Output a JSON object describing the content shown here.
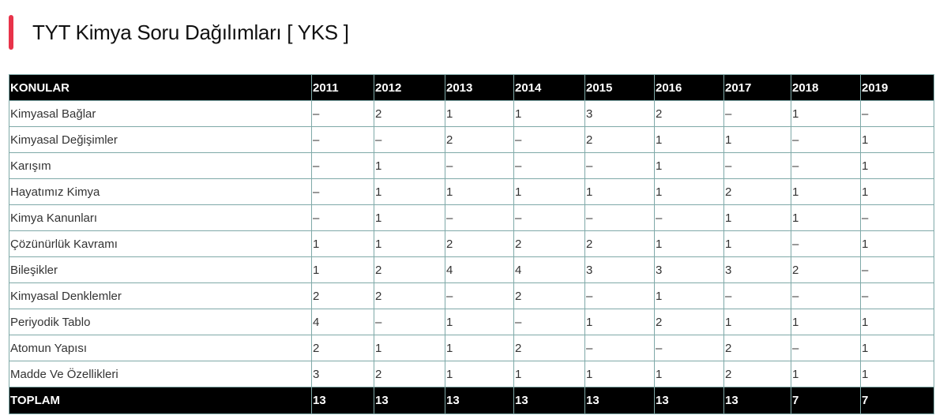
{
  "title": "TYT Kimya Soru Dağılımları [ YKS ]",
  "accent_color": "#e8334a",
  "table": {
    "headers": [
      "KONULAR",
      "2011",
      "2012",
      "2013",
      "2014",
      "2015",
      "2016",
      "2017",
      "2018",
      "2019"
    ],
    "rows": [
      [
        "Kimyasal Bağlar",
        "–",
        "2",
        "1",
        "1",
        "3",
        "2",
        "–",
        "1",
        "–"
      ],
      [
        "Kimyasal Değişimler",
        "–",
        "–",
        "2",
        "–",
        "2",
        "1",
        "1",
        "–",
        "1"
      ],
      [
        "Karışım",
        "–",
        "1",
        "–",
        "–",
        "–",
        "1",
        "–",
        "–",
        "1"
      ],
      [
        "Hayatımız Kimya",
        "–",
        "1",
        "1",
        "1",
        "1",
        "1",
        "2",
        "1",
        "1"
      ],
      [
        "Kimya Kanunları",
        "–",
        "1",
        "–",
        "–",
        "–",
        "–",
        "1",
        "1",
        "–"
      ],
      [
        "Çözünürlük Kavramı",
        "1",
        "1",
        "2",
        "2",
        "2",
        "1",
        "1",
        "–",
        "1"
      ],
      [
        "Bileşikler",
        "1",
        "2",
        "4",
        "4",
        "3",
        "3",
        "3",
        "2",
        "–"
      ],
      [
        "Kimyasal Denklemler",
        "2",
        "2",
        "–",
        "2",
        "–",
        "1",
        "–",
        "–",
        "–"
      ],
      [
        "Periyodik Tablo",
        "4",
        "–",
        "1",
        "–",
        "1",
        "2",
        "1",
        "1",
        "1"
      ],
      [
        "Atomun Yapısı",
        "2",
        "1",
        "1",
        "2",
        "–",
        "–",
        "2",
        "–",
        "1"
      ],
      [
        "Madde Ve Özellikleri",
        "3",
        "2",
        "1",
        "1",
        "1",
        "1",
        "2",
        "1",
        "1"
      ]
    ],
    "footer": [
      "TOPLAM",
      "13",
      "13",
      "13",
      "13",
      "13",
      "13",
      "13",
      "7",
      "7"
    ]
  }
}
